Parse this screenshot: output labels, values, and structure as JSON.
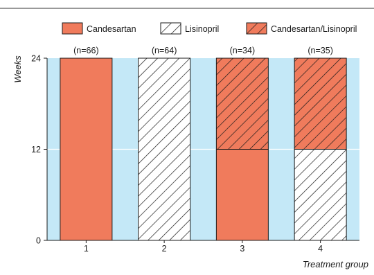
{
  "chart_data": {
    "type": "bar",
    "stacked": true,
    "categories": [
      "1",
      "2",
      "3",
      "4"
    ],
    "sample_sizes": [
      "(n=66)",
      "(n=64)",
      "(n=34)",
      "(n=35)"
    ],
    "series": [
      {
        "name": "Candesartan",
        "values": [
          24,
          0,
          12,
          0
        ],
        "fill": "#f07b5c",
        "pattern": "none"
      },
      {
        "name": "Lisinopril",
        "values": [
          0,
          24,
          0,
          12
        ],
        "fill": "#ffffff",
        "pattern": "hatch"
      },
      {
        "name": "Candesartan/Lisinopril",
        "values": [
          0,
          0,
          12,
          12
        ],
        "fill": "#f07b5c",
        "pattern": "hatch"
      }
    ],
    "ylabel": "Weeks",
    "xlabel": "Treatment group",
    "ylim": [
      0,
      24
    ],
    "yticks": [
      "0",
      "12",
      "24"
    ],
    "grid": true,
    "legend_position": "top",
    "colors": {
      "plot_background": "#c4e8f7",
      "gridline": "#ffffff",
      "candesartan": "#f07b5c",
      "outline": "#1a1a1a"
    }
  }
}
